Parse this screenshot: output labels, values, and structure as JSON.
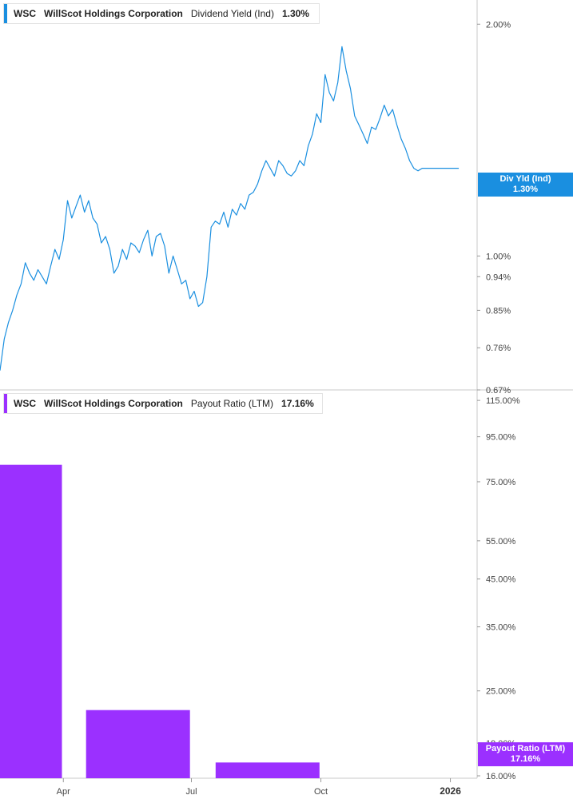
{
  "colors": {
    "yield_line": "#1a8fe0",
    "payout_bar": "#9b30ff",
    "axis": "#c8c8c8",
    "tick_text": "#444444"
  },
  "legends": {
    "top": {
      "ticker": "WSC",
      "company": "WillScot Holdings Corporation",
      "metric": "Dividend Yield (Ind)",
      "value": "1.30%"
    },
    "bottom": {
      "ticker": "WSC",
      "company": "WillScot Holdings Corporation",
      "metric": "Payout Ratio (LTM)",
      "value": "17.16%"
    }
  },
  "badges": {
    "top": {
      "line1": "Div Yld (Ind)",
      "line2": "1.30%"
    },
    "bottom": {
      "line1": "Payout Ratio (LTM)",
      "line2": "17.16%"
    }
  },
  "x_axis": {
    "labels": [
      "Apr",
      "Jul",
      "Oct",
      "2026"
    ],
    "label_dates": [
      "2025-04-01",
      "2025-07-01",
      "2025-10-01",
      "2026-01-01"
    ],
    "range": [
      "2025-02-15",
      "2026-01-20"
    ]
  },
  "chart_data": [
    {
      "type": "line",
      "title": "WSC WillScot Holdings Corporation Dividend Yield (Ind) 1.30%",
      "ylabel": "",
      "y_scale": "log",
      "ylim": [
        0.67,
        2.15
      ],
      "y_ticks": [
        "2.00%",
        "1.00%",
        "0.94%",
        "0.85%",
        "0.76%",
        "0.67%"
      ],
      "y_tick_values": [
        2.0,
        1.0,
        0.94,
        0.85,
        0.76,
        0.67
      ],
      "series": [
        {
          "name": "Dividend Yield (Ind)",
          "x": [
            "2025-02-15",
            "2025-02-18",
            "2025-02-21",
            "2025-02-24",
            "2025-02-27",
            "2025-03-02",
            "2025-03-05",
            "2025-03-08",
            "2025-03-11",
            "2025-03-14",
            "2025-03-17",
            "2025-03-20",
            "2025-03-23",
            "2025-03-26",
            "2025-03-29",
            "2025-04-01",
            "2025-04-04",
            "2025-04-07",
            "2025-04-10",
            "2025-04-13",
            "2025-04-16",
            "2025-04-19",
            "2025-04-22",
            "2025-04-25",
            "2025-04-28",
            "2025-05-01",
            "2025-05-04",
            "2025-05-07",
            "2025-05-10",
            "2025-05-13",
            "2025-05-16",
            "2025-05-19",
            "2025-05-22",
            "2025-05-25",
            "2025-05-28",
            "2025-05-31",
            "2025-06-03",
            "2025-06-06",
            "2025-06-09",
            "2025-06-12",
            "2025-06-15",
            "2025-06-18",
            "2025-06-21",
            "2025-06-24",
            "2025-06-27",
            "2025-06-30",
            "2025-07-03",
            "2025-07-06",
            "2025-07-09",
            "2025-07-12",
            "2025-07-15",
            "2025-07-18",
            "2025-07-21",
            "2025-07-24",
            "2025-07-27",
            "2025-07-30",
            "2025-08-02",
            "2025-08-05",
            "2025-08-08",
            "2025-08-11",
            "2025-08-14",
            "2025-08-17",
            "2025-08-20",
            "2025-08-23",
            "2025-08-26",
            "2025-08-29",
            "2025-09-01",
            "2025-09-04",
            "2025-09-07",
            "2025-09-10",
            "2025-09-13",
            "2025-09-16",
            "2025-09-19",
            "2025-09-22",
            "2025-09-25",
            "2025-09-28",
            "2025-10-01",
            "2025-10-04",
            "2025-10-07",
            "2025-10-10",
            "2025-10-13",
            "2025-10-16",
            "2025-10-19",
            "2025-10-22",
            "2025-10-25",
            "2025-10-28",
            "2025-10-31",
            "2025-11-03",
            "2025-11-06",
            "2025-11-09",
            "2025-11-12",
            "2025-11-15",
            "2025-11-18",
            "2025-11-21",
            "2025-11-24",
            "2025-11-27",
            "2025-11-30",
            "2025-12-03",
            "2025-12-06",
            "2025-12-09",
            "2025-12-12",
            "2025-12-15",
            "2025-12-18",
            "2025-12-21",
            "2025-12-24",
            "2025-12-27",
            "2025-12-30",
            "2026-01-02",
            "2026-01-05",
            "2026-01-07"
          ],
          "values": [
            0.71,
            0.78,
            0.82,
            0.85,
            0.89,
            0.92,
            0.98,
            0.95,
            0.93,
            0.96,
            0.94,
            0.92,
            0.97,
            1.02,
            0.99,
            1.05,
            1.18,
            1.12,
            1.16,
            1.2,
            1.14,
            1.18,
            1.12,
            1.1,
            1.04,
            1.06,
            1.02,
            0.95,
            0.97,
            1.02,
            0.99,
            1.04,
            1.03,
            1.01,
            1.05,
            1.08,
            1.0,
            1.06,
            1.07,
            1.03,
            0.95,
            1.0,
            0.96,
            0.92,
            0.93,
            0.88,
            0.9,
            0.86,
            0.87,
            0.94,
            1.09,
            1.11,
            1.1,
            1.14,
            1.09,
            1.15,
            1.13,
            1.17,
            1.15,
            1.2,
            1.21,
            1.24,
            1.29,
            1.33,
            1.3,
            1.27,
            1.33,
            1.31,
            1.28,
            1.27,
            1.29,
            1.33,
            1.31,
            1.39,
            1.44,
            1.53,
            1.49,
            1.72,
            1.63,
            1.59,
            1.68,
            1.87,
            1.74,
            1.65,
            1.52,
            1.48,
            1.44,
            1.4,
            1.47,
            1.46,
            1.51,
            1.57,
            1.52,
            1.55,
            1.48,
            1.42,
            1.38,
            1.33,
            1.3,
            1.29,
            1.3,
            1.3,
            1.3,
            1.3,
            1.3,
            1.3,
            1.3,
            1.3,
            1.3,
            1.3
          ]
        }
      ]
    },
    {
      "type": "bar",
      "title": "WSC WillScot Holdings Corporation Payout Ratio (LTM) 17.16%",
      "ylabel": "",
      "y_scale": "log",
      "ylim": [
        15.8,
        121.0
      ],
      "y_ticks": [
        "115.00%",
        "95.00%",
        "75.00%",
        "55.00%",
        "45.00%",
        "35.00%",
        "25.00%",
        "19.00%",
        "16.00%"
      ],
      "y_tick_values": [
        115,
        95,
        75,
        55,
        45,
        35,
        25,
        19,
        16
      ],
      "categories": [
        "2025-03-31",
        "2025-06-30",
        "2025-09-30"
      ],
      "series": [
        {
          "name": "Payout Ratio (LTM)",
          "values": [
            82.0,
            22.6,
            17.16
          ]
        }
      ]
    }
  ]
}
